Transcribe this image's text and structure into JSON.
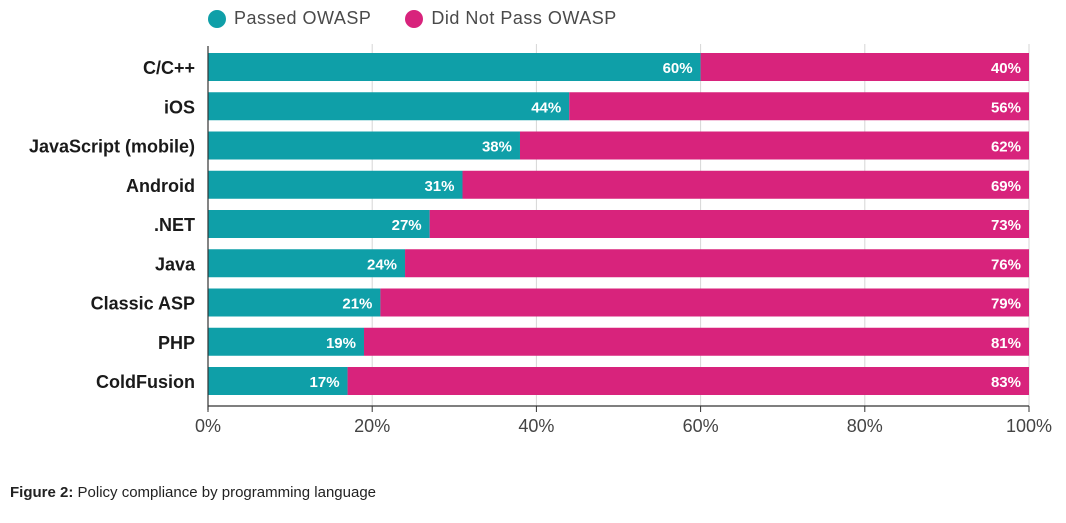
{
  "legend": {
    "passed": "Passed OWASP",
    "not_passed": "Did Not Pass OWASP"
  },
  "caption": {
    "label": "Figure 2:",
    "text": "Policy compliance by programming language"
  },
  "colors": {
    "passed": "#0f9fa8",
    "not_passed": "#d8237c",
    "grid": "#d6d6d6",
    "axis": "#333333"
  },
  "chart_data": {
    "type": "bar",
    "orientation": "horizontal",
    "stacked": true,
    "categories": [
      "C/C++",
      "iOS",
      "JavaScript (mobile)",
      "Android",
      ".NET",
      "Java",
      "Classic ASP",
      "PHP",
      "ColdFusion"
    ],
    "series": [
      {
        "name": "Passed OWASP",
        "values": [
          60,
          44,
          38,
          31,
          27,
          24,
          21,
          19,
          17
        ],
        "labels": [
          "60%",
          "44%",
          "38%",
          "31%",
          "27%",
          "24%",
          "21%",
          "19%",
          "17%"
        ]
      },
      {
        "name": "Did Not Pass OWASP",
        "values": [
          40,
          56,
          62,
          69,
          73,
          76,
          79,
          81,
          83
        ],
        "labels": [
          "40%",
          "56%",
          "62%",
          "69%",
          "73%",
          "76%",
          "79%",
          "81%",
          "83%"
        ]
      }
    ],
    "xlim": [
      0,
      100
    ],
    "xticks": [
      0,
      20,
      40,
      60,
      80,
      100
    ],
    "xtick_labels": [
      "0%",
      "20%",
      "40%",
      "60%",
      "80%",
      "100%"
    ],
    "grid": true,
    "legend_position": "top"
  }
}
